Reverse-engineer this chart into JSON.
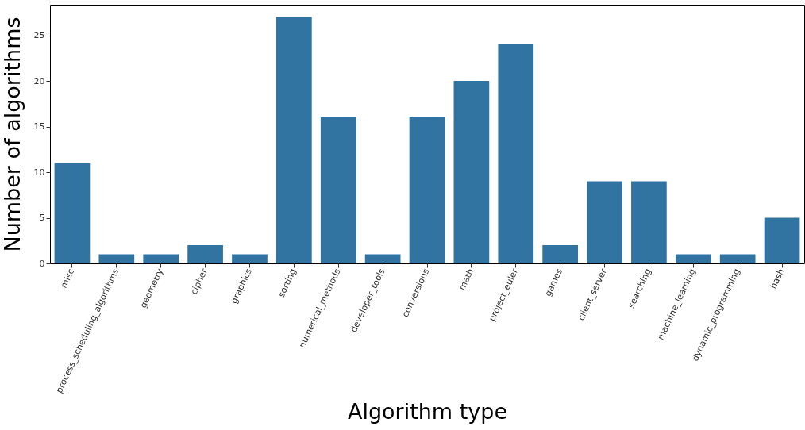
{
  "chart_data": {
    "type": "bar",
    "xlabel": "Algorithm type",
    "ylabel": "Number of algorithms",
    "categories": [
      "misc",
      "process_scheduling_algorithms",
      "geometry",
      "cipher",
      "graphics",
      "sorting",
      "numerical_methods",
      "developer_tools",
      "conversions",
      "math",
      "project_euler",
      "games",
      "client_server",
      "searching",
      "machine_learning",
      "dynamic_programming",
      "hash"
    ],
    "values": [
      11,
      1,
      1,
      2,
      1,
      27,
      16,
      1,
      16,
      20,
      24,
      2,
      9,
      9,
      1,
      1,
      5
    ],
    "color": "#3274a1",
    "ylim": [
      0,
      28.35
    ],
    "yticks": [
      0,
      5,
      10,
      15,
      20,
      25
    ],
    "grid": false
  }
}
